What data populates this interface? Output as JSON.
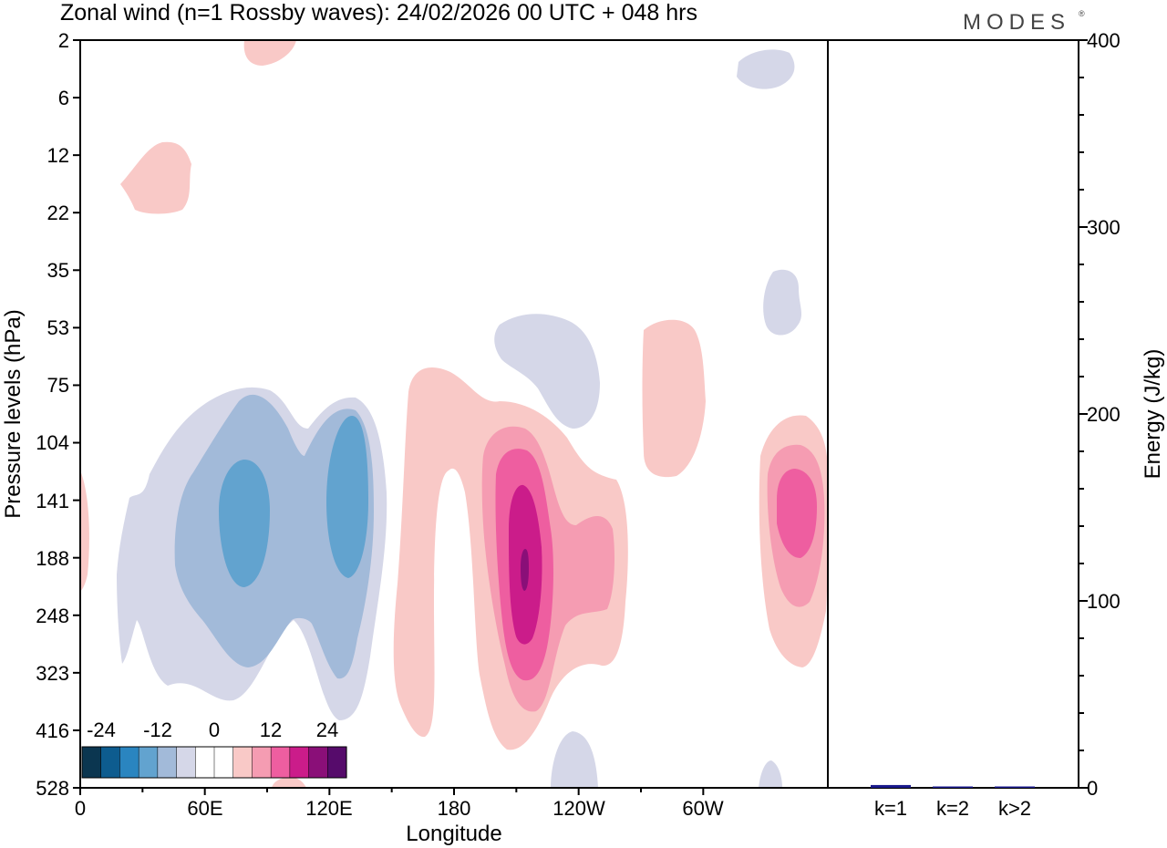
{
  "chart_data": {
    "type": "filled-contour",
    "title": "Zonal wind (n=1 Rossby waves):  24/02/2026  00 UTC  + 048 hrs",
    "brand": "MODES",
    "brand_mark": "®",
    "xlabel": "Longitude",
    "ylabel": "Pressure levels (hPa)",
    "x_ticks": [
      "0",
      "60E",
      "120E",
      "180",
      "120W",
      "60W"
    ],
    "x_range_deg": [
      0,
      360
    ],
    "y_ticks": [
      "2",
      "6",
      "12",
      "22",
      "35",
      "53",
      "75",
      "104",
      "141",
      "188",
      "248",
      "323",
      "416",
      "528"
    ],
    "colorbar": {
      "tick_labels": [
        "-24",
        "-12",
        "0",
        "12",
        "24"
      ],
      "colors": [
        "#0b3650",
        "#0d5c8f",
        "#2a85c0",
        "#62a3cf",
        "#a2bad9",
        "#d5d7e8",
        "#ffffff",
        "#ffffff",
        "#f9c9c7",
        "#f59cb2",
        "#ee5ea0",
        "#cb1c8a",
        "#8a0f78",
        "#560b6b"
      ]
    },
    "contour_colors": {
      "neg_weak": "#d5d7e8",
      "neg_mid": "#a2bad9",
      "neg_strong": "#62a3cf",
      "pos_weak": "#f9c9c7",
      "pos_mid": "#f59cb2",
      "pos_strong": "#ee5ea0",
      "pos_stronger": "#cb1c8a",
      "pos_max": "#8a0f78"
    },
    "energy_panel": {
      "type": "bar",
      "ylabel": "Energy (J/kg)",
      "ylim": [
        0,
        400
      ],
      "y_ticks": [
        "0",
        "100",
        "200",
        "300",
        "400"
      ],
      "categories": [
        "k=1",
        "k=2",
        "k>2"
      ],
      "values": [
        1.5,
        0.5,
        0.5
      ],
      "bar_colors": [
        "#1a1a8c",
        "#1a1a8c",
        "#1a1a8c"
      ]
    }
  }
}
